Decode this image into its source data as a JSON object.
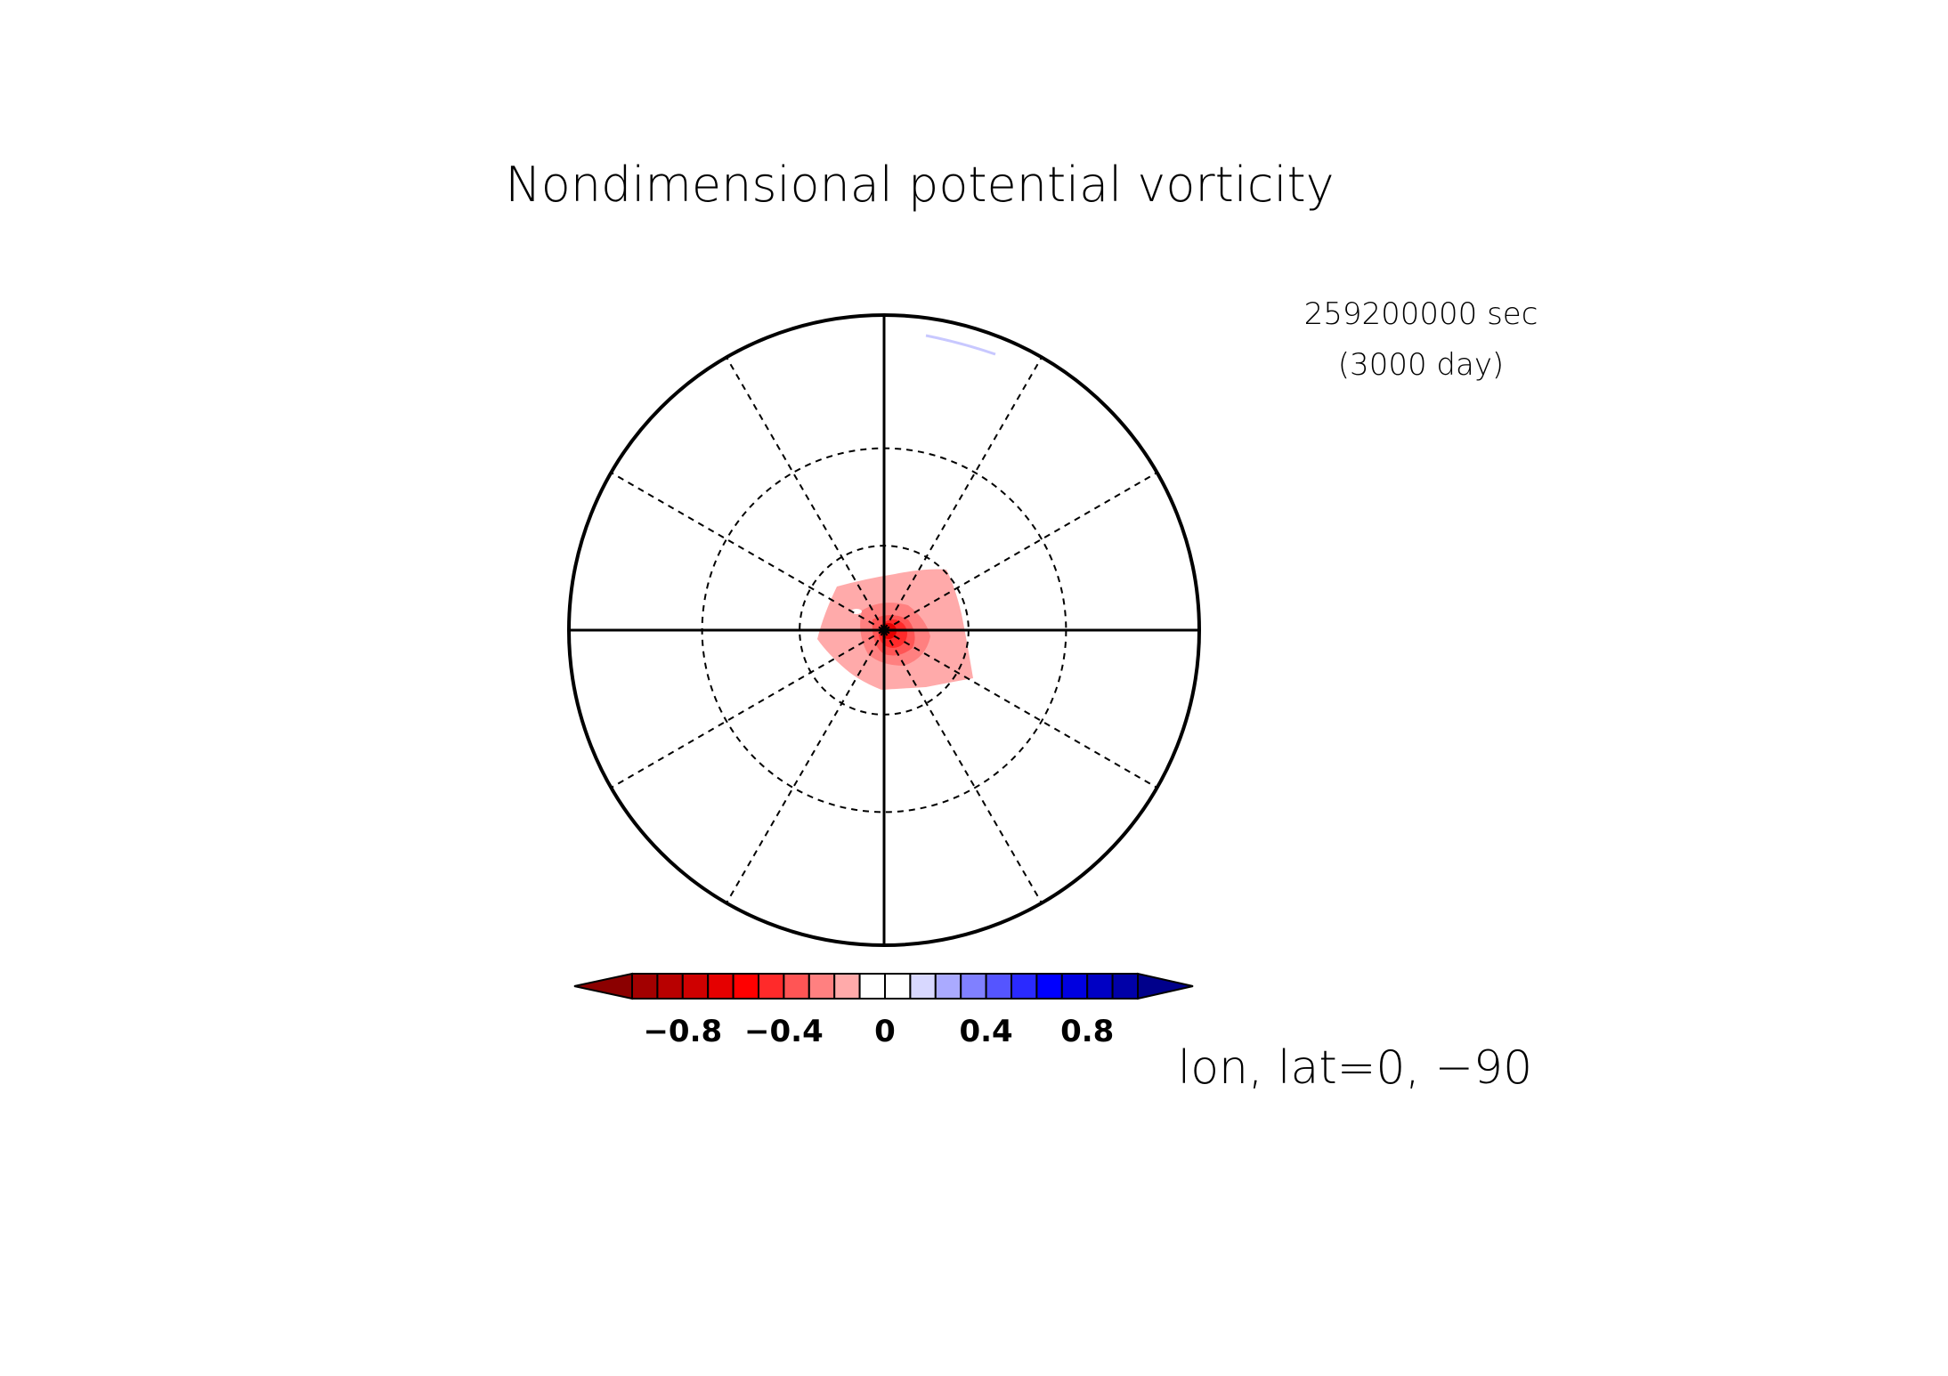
{
  "chart_data": {
    "type": "heatmap",
    "projection": "polar-stereographic",
    "title": "Nondimensional potential vorticity",
    "time_label": "259200000 sec",
    "time_label_days": "(3000 day)",
    "axis_label": "lon, lat=0, −90",
    "colorbar": {
      "min": -1.0,
      "max": 1.0,
      "step": 0.1,
      "tick_values": [
        "−0.8",
        "−0.4",
        "0",
        "0.4",
        "0.8"
      ],
      "colors": [
        "#8b0000",
        "#a20000",
        "#b80000",
        "#cf0000",
        "#e50000",
        "#ff0000",
        "#ff2a2a",
        "#ff5555",
        "#ff8080",
        "#ffaaaa",
        "#ffffff",
        "#ffffff",
        "#d8d8ff",
        "#aaaaff",
        "#8080ff",
        "#5555ff",
        "#2a2aff",
        "#0000ff",
        "#0000e0",
        "#0000c4",
        "#0000a8",
        "#00008b"
      ],
      "extend": "both"
    },
    "grid": true,
    "meridian_spacing_deg": 30,
    "parallels_deg": [
      -60,
      -30
    ],
    "features": [
      {
        "name": "vortex-core",
        "value_range": [
          -0.4,
          -0.1
        ],
        "location": "near pole"
      }
    ]
  }
}
